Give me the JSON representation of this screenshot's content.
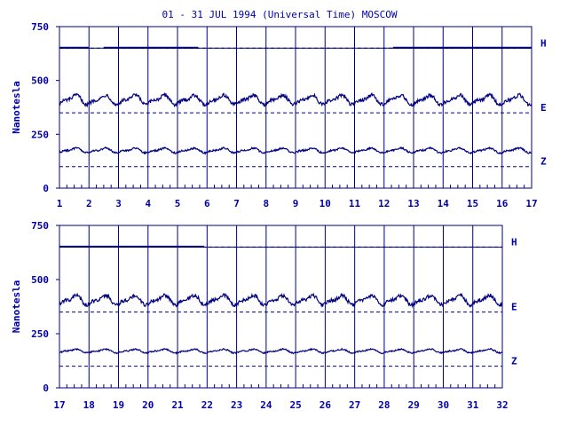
{
  "title": "01 - 31 JUL 1994 (Universal Time) MOSCOW",
  "colors": {
    "ink": "#000080",
    "label": "#0000aa",
    "background": "#ffffff"
  },
  "chart_data": [
    {
      "type": "line",
      "panel": "top",
      "title": "01 - 31 JUL 1994 (Universal Time) MOSCOW",
      "ylabel": "Nanotesla",
      "xlabel": "",
      "xlim": [
        1,
        17
      ],
      "ylim": [
        0,
        750
      ],
      "y_ticks": [
        0,
        250,
        500,
        750
      ],
      "x_ticks": [
        "1",
        "2",
        "3",
        "4",
        "5",
        "6",
        "7",
        "8",
        "9",
        "10",
        "11",
        "12",
        "13",
        "14",
        "15",
        "16",
        "17"
      ],
      "grid": "vertical",
      "series": [
        {
          "name": "H",
          "baseline": 650,
          "level": 652,
          "segments": [
            [
              1,
              2
            ],
            [
              2.5,
              5.7
            ],
            [
              12.3,
              17
            ]
          ]
        },
        {
          "name": "E",
          "baseline": 350,
          "level": 410,
          "amplitude": 30
        },
        {
          "name": "Z",
          "baseline": 100,
          "level": 175,
          "amplitude": 15
        }
      ]
    },
    {
      "type": "line",
      "panel": "bottom",
      "ylabel": "Nanotesla",
      "xlabel": "",
      "xlim": [
        17,
        32
      ],
      "ylim": [
        0,
        750
      ],
      "y_ticks": [
        0,
        250,
        500,
        750
      ],
      "x_ticks": [
        "17",
        "18",
        "19",
        "20",
        "21",
        "22",
        "23",
        "24",
        "25",
        "26",
        "27",
        "28",
        "29",
        "30",
        "31",
        "32"
      ],
      "grid": "vertical",
      "series": [
        {
          "name": "H",
          "baseline": 650,
          "level": 652,
          "segments": [
            [
              17,
              21.9
            ]
          ]
        },
        {
          "name": "E",
          "baseline": 350,
          "level": 405,
          "amplitude": 30
        },
        {
          "name": "Z",
          "baseline": 100,
          "level": 170,
          "amplitude": 12
        }
      ]
    }
  ]
}
